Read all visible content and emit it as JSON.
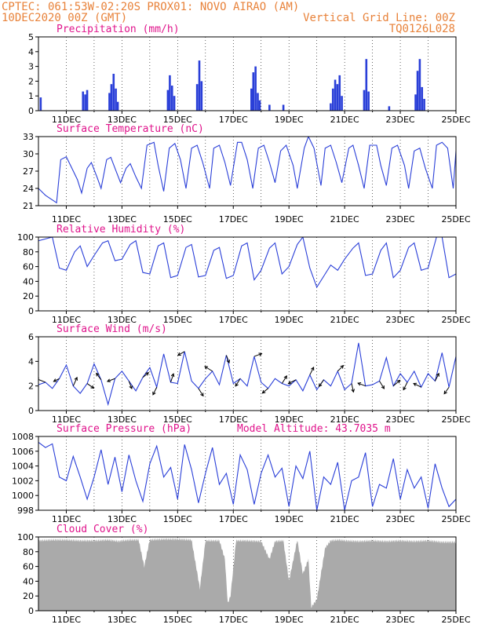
{
  "header": {
    "line1_left": "CPTEC:  061:53W-02:20S   PROX01: NOVO AIRAO (AM)",
    "line2_left": "10DEC2020 00Z (GMT)",
    "line2_right": "Vertical Grid Line: 00Z",
    "line3_right": "TQ0126L028"
  },
  "colors": {
    "header": "#e8823a",
    "title": "#e0148c",
    "series": "#2a3fd8",
    "cloud": "#aaaaaa",
    "arrow": "#000000"
  },
  "chart_data": [
    {
      "id": "precip",
      "type": "bar",
      "title": "Precipitation (mm/h)",
      "x_ticks": [
        "11DEC",
        "13DEC",
        "15DEC",
        "17DEC",
        "19DEC",
        "21DEC",
        "23DEC",
        "25DEC"
      ],
      "x_range_days": [
        10.0,
        25.0
      ],
      "ylim": [
        0,
        5
      ],
      "y_ticks": [
        0,
        1,
        2,
        3,
        4,
        5
      ],
      "bars": [
        {
          "day": 10.08,
          "value": 0.9
        },
        {
          "day": 11.6,
          "value": 1.3
        },
        {
          "day": 11.68,
          "value": 1.1
        },
        {
          "day": 11.75,
          "value": 1.4
        },
        {
          "day": 12.55,
          "value": 1.2
        },
        {
          "day": 12.62,
          "value": 1.8
        },
        {
          "day": 12.7,
          "value": 2.5
        },
        {
          "day": 12.78,
          "value": 1.5
        },
        {
          "day": 12.85,
          "value": 0.6
        },
        {
          "day": 14.65,
          "value": 1.4
        },
        {
          "day": 14.72,
          "value": 2.4
        },
        {
          "day": 14.8,
          "value": 1.7
        },
        {
          "day": 14.88,
          "value": 1.0
        },
        {
          "day": 15.7,
          "value": 1.8
        },
        {
          "day": 15.78,
          "value": 3.4
        },
        {
          "day": 15.86,
          "value": 2.0
        },
        {
          "day": 17.65,
          "value": 1.5
        },
        {
          "day": 17.72,
          "value": 2.6
        },
        {
          "day": 17.8,
          "value": 3.0
        },
        {
          "day": 17.88,
          "value": 1.2
        },
        {
          "day": 17.95,
          "value": 0.7
        },
        {
          "day": 18.3,
          "value": 0.4
        },
        {
          "day": 18.8,
          "value": 0.4
        },
        {
          "day": 20.5,
          "value": 0.5
        },
        {
          "day": 20.58,
          "value": 1.5
        },
        {
          "day": 20.66,
          "value": 2.1
        },
        {
          "day": 20.74,
          "value": 1.8
        },
        {
          "day": 20.82,
          "value": 2.4
        },
        {
          "day": 20.9,
          "value": 1.0
        },
        {
          "day": 21.7,
          "value": 1.4
        },
        {
          "day": 21.78,
          "value": 3.5
        },
        {
          "day": 21.86,
          "value": 1.3
        },
        {
          "day": 22.6,
          "value": 0.3
        },
        {
          "day": 23.55,
          "value": 1.1
        },
        {
          "day": 23.62,
          "value": 2.7
        },
        {
          "day": 23.7,
          "value": 3.5
        },
        {
          "day": 23.78,
          "value": 1.6
        },
        {
          "day": 23.86,
          "value": 0.8
        }
      ]
    },
    {
      "id": "temp",
      "type": "line",
      "title": "Surface Temperature (nC)",
      "x_ticks": [
        "11DEC",
        "13DEC",
        "15DEC",
        "17DEC",
        "19DEC",
        "21DEC",
        "23DEC",
        "25DEC"
      ],
      "x_range_days": [
        10.0,
        25.0
      ],
      "ylim": [
        21,
        33
      ],
      "y_ticks": [
        21,
        24,
        27,
        30,
        33
      ],
      "x": [
        10.0,
        10.25,
        10.5,
        10.65,
        10.8,
        11.0,
        11.2,
        11.4,
        11.55,
        11.75,
        11.9,
        12.1,
        12.25,
        12.45,
        12.6,
        12.75,
        12.95,
        13.15,
        13.3,
        13.5,
        13.7,
        13.9,
        14.15,
        14.3,
        14.5,
        14.7,
        14.9,
        15.1,
        15.3,
        15.5,
        15.7,
        15.9,
        16.15,
        16.3,
        16.5,
        16.7,
        16.9,
        17.15,
        17.3,
        17.5,
        17.7,
        17.9,
        18.1,
        18.3,
        18.5,
        18.7,
        18.9,
        19.15,
        19.3,
        19.55,
        19.7,
        19.9,
        20.15,
        20.3,
        20.5,
        20.7,
        20.9,
        21.15,
        21.3,
        21.5,
        21.7,
        21.9,
        22.15,
        22.3,
        22.5,
        22.7,
        22.9,
        23.15,
        23.3,
        23.5,
        23.7,
        23.9,
        24.15,
        24.3,
        24.5,
        24.7,
        24.9,
        25.0
      ],
      "y": [
        24.0,
        22.8,
        22.0,
        21.5,
        29.0,
        29.5,
        27.5,
        25.5,
        23.2,
        27.5,
        28.5,
        26.0,
        24.0,
        29.0,
        29.4,
        27.5,
        25.0,
        27.5,
        28.3,
        26.0,
        24.0,
        31.5,
        32.0,
        28.0,
        23.5,
        31.0,
        31.8,
        29.0,
        24.0,
        31.0,
        31.5,
        28.5,
        24.0,
        31.0,
        31.5,
        28.5,
        24.5,
        32.0,
        32.0,
        29.0,
        24.0,
        31.0,
        31.5,
        28.5,
        25.0,
        30.5,
        31.5,
        28.0,
        24.0,
        31.0,
        33.0,
        31.0,
        24.5,
        31.0,
        31.5,
        28.5,
        25.0,
        31.0,
        31.5,
        28.0,
        24.0,
        31.5,
        31.5,
        28.0,
        24.5,
        31.0,
        31.5,
        28.0,
        24.0,
        30.5,
        31.0,
        27.5,
        24.0,
        31.5,
        32.0,
        31.0,
        24.0,
        30.5
      ]
    },
    {
      "id": "rh",
      "type": "line",
      "title": "Relative Humidity (%)",
      "x_ticks": [
        "11DEC",
        "13DEC",
        "15DEC",
        "17DEC",
        "19DEC",
        "21DEC",
        "23DEC",
        "25DEC"
      ],
      "x_range_days": [
        10.0,
        25.0
      ],
      "ylim": [
        0,
        100
      ],
      "y_ticks": [
        0,
        20,
        40,
        60,
        80,
        100
      ],
      "x": [
        10.0,
        10.3,
        10.5,
        10.75,
        11.0,
        11.3,
        11.5,
        11.75,
        12.0,
        12.3,
        12.5,
        12.75,
        13.0,
        13.3,
        13.5,
        13.75,
        14.0,
        14.3,
        14.5,
        14.75,
        15.0,
        15.3,
        15.5,
        15.75,
        16.0,
        16.3,
        16.5,
        16.75,
        17.0,
        17.3,
        17.5,
        17.75,
        18.0,
        18.3,
        18.5,
        18.75,
        19.0,
        19.3,
        19.5,
        19.75,
        20.0,
        20.3,
        20.5,
        20.75,
        21.0,
        21.3,
        21.5,
        21.75,
        22.0,
        22.3,
        22.5,
        22.75,
        23.0,
        23.3,
        23.5,
        23.75,
        24.0,
        24.3,
        24.5,
        24.75,
        25.0
      ],
      "y": [
        95,
        98,
        100,
        58,
        55,
        80,
        88,
        60,
        75,
        92,
        95,
        68,
        70,
        90,
        95,
        52,
        50,
        88,
        92,
        45,
        48,
        86,
        90,
        46,
        48,
        82,
        86,
        44,
        48,
        88,
        92,
        42,
        55,
        85,
        92,
        50,
        60,
        90,
        100,
        58,
        32,
        50,
        62,
        55,
        70,
        85,
        92,
        48,
        50,
        82,
        92,
        45,
        55,
        86,
        92,
        55,
        58,
        100,
        100,
        45,
        50
      ]
    },
    {
      "id": "wind",
      "type": "line",
      "title": "Surface Wind (m/s)",
      "x_ticks": [
        "11DEC",
        "13DEC",
        "15DEC",
        "17DEC",
        "19DEC",
        "21DEC",
        "23DEC",
        "25DEC"
      ],
      "x_range_days": [
        10.0,
        25.0
      ],
      "ylim": [
        0,
        6
      ],
      "y_ticks": [
        0,
        2,
        4,
        6
      ],
      "x": [
        10.0,
        10.25,
        10.5,
        10.75,
        11.0,
        11.25,
        11.5,
        11.75,
        12.0,
        12.25,
        12.5,
        12.75,
        13.0,
        13.25,
        13.5,
        13.75,
        14.0,
        14.25,
        14.5,
        14.75,
        15.0,
        15.25,
        15.5,
        15.75,
        16.0,
        16.25,
        16.5,
        16.75,
        17.0,
        17.25,
        17.5,
        17.75,
        18.0,
        18.25,
        18.5,
        18.75,
        19.0,
        19.25,
        19.5,
        19.75,
        20.0,
        20.25,
        20.5,
        20.75,
        21.0,
        21.25,
        21.5,
        21.75,
        22.0,
        22.25,
        22.5,
        22.75,
        23.0,
        23.25,
        23.5,
        23.75,
        24.0,
        24.25,
        24.5,
        24.75,
        25.0
      ],
      "y": [
        2.1,
        2.3,
        1.8,
        2.6,
        3.7,
        2.0,
        1.4,
        2.2,
        3.8,
        2.5,
        0.5,
        2.6,
        3.2,
        2.4,
        1.6,
        2.7,
        3.5,
        1.9,
        4.6,
        2.3,
        2.2,
        4.8,
        2.4,
        1.8,
        2.6,
        3.2,
        2.1,
        4.5,
        2.2,
        2.6,
        2.0,
        4.4,
        2.3,
        1.8,
        2.6,
        2.2,
        2.0,
        2.5,
        1.6,
        2.9,
        1.7,
        2.5,
        2.0,
        3.2,
        1.7,
        2.2,
        5.5,
        2.0,
        2.1,
        2.4,
        4.3,
        2.0,
        3.0,
        2.3,
        3.2,
        1.9,
        3.0,
        2.4,
        4.7,
        1.9,
        4.4
      ],
      "arrows": [
        {
          "day": 10.25,
          "u": -1.0,
          "v": 0.4
        },
        {
          "day": 10.75,
          "u": -0.6,
          "v": -0.3
        },
        {
          "day": 11.25,
          "u": 0.4,
          "v": 0.9
        },
        {
          "day": 11.75,
          "u": 0.7,
          "v": -0.5
        },
        {
          "day": 12.25,
          "u": -0.5,
          "v": 0.7
        },
        {
          "day": 12.75,
          "u": -0.8,
          "v": -0.3
        },
        {
          "day": 13.25,
          "u": 0.3,
          "v": -0.8
        },
        {
          "day": 13.75,
          "u": 0.6,
          "v": 0.5
        },
        {
          "day": 14.25,
          "u": -0.4,
          "v": -0.8
        },
        {
          "day": 14.75,
          "u": 0.3,
          "v": 0.9
        },
        {
          "day": 15.25,
          "u": -0.7,
          "v": -0.4
        },
        {
          "day": 15.75,
          "u": 0.5,
          "v": -0.8
        },
        {
          "day": 16.25,
          "u": -0.8,
          "v": 0.5
        },
        {
          "day": 16.75,
          "u": 0.3,
          "v": -0.8
        },
        {
          "day": 17.25,
          "u": -0.5,
          "v": -0.8
        },
        {
          "day": 17.75,
          "u": 0.8,
          "v": 0.3
        },
        {
          "day": 18.25,
          "u": -0.6,
          "v": -0.5
        },
        {
          "day": 18.75,
          "u": 0.5,
          "v": 0.8
        },
        {
          "day": 19.25,
          "u": -0.8,
          "v": -0.4
        },
        {
          "day": 19.75,
          "u": 0.4,
          "v": 0.8
        },
        {
          "day": 20.25,
          "u": -0.5,
          "v": -0.7
        },
        {
          "day": 20.75,
          "u": 0.6,
          "v": 0.6
        },
        {
          "day": 21.25,
          "u": 0.2,
          "v": -0.9
        },
        {
          "day": 21.75,
          "u": -0.8,
          "v": 0.3
        },
        {
          "day": 22.25,
          "u": 0.5,
          "v": -0.8
        },
        {
          "day": 22.75,
          "u": 0.7,
          "v": 0.6
        },
        {
          "day": 23.25,
          "u": -0.4,
          "v": -0.8
        },
        {
          "day": 23.75,
          "u": -0.8,
          "v": 0.4
        },
        {
          "day": 24.25,
          "u": 0.4,
          "v": 0.8
        },
        {
          "day": 24.75,
          "u": -0.5,
          "v": -0.7
        }
      ]
    },
    {
      "id": "pressure",
      "type": "line",
      "title": "Surface Pressure (hPa)",
      "annotation": "Model Altitude: 43.7035 m",
      "x_ticks": [
        "11DEC",
        "13DEC",
        "15DEC",
        "17DEC",
        "19DEC",
        "21DEC",
        "23DEC",
        "25DEC"
      ],
      "x_range_days": [
        10.0,
        25.0
      ],
      "ylim": [
        998,
        1008
      ],
      "y_ticks": [
        998,
        1000,
        1002,
        1004,
        1006,
        1008
      ],
      "x": [
        10.0,
        10.25,
        10.5,
        10.75,
        11.0,
        11.25,
        11.5,
        11.75,
        12.0,
        12.25,
        12.5,
        12.75,
        13.0,
        13.25,
        13.5,
        13.75,
        14.0,
        14.25,
        14.5,
        14.75,
        15.0,
        15.25,
        15.5,
        15.75,
        16.0,
        16.25,
        16.5,
        16.75,
        17.0,
        17.25,
        17.5,
        17.75,
        18.0,
        18.25,
        18.5,
        18.75,
        19.0,
        19.25,
        19.5,
        19.75,
        20.0,
        20.25,
        20.5,
        20.75,
        21.0,
        21.25,
        21.5,
        21.75,
        22.0,
        22.25,
        22.5,
        22.75,
        23.0,
        23.25,
        23.5,
        23.75,
        24.0,
        24.25,
        24.5,
        24.75,
        25.0
      ],
      "y": [
        1007.2,
        1006.5,
        1007.0,
        1002.5,
        1002.0,
        1005.3,
        1002.5,
        999.5,
        1002.5,
        1006.2,
        1001.5,
        1005.2,
        1000.5,
        1005.5,
        1002.0,
        999.2,
        1004.3,
        1006.7,
        1002.5,
        1003.8,
        999.5,
        1006.9,
        1003.5,
        999.0,
        1003.0,
        1006.5,
        1001.5,
        1003.0,
        998.8,
        1005.5,
        1003.5,
        998.8,
        1003.0,
        1005.5,
        1002.5,
        1003.7,
        998.5,
        1004.0,
        1002.3,
        1006.0,
        998.0,
        1002.5,
        1001.5,
        1004.5,
        998.0,
        1002.0,
        1002.5,
        1005.8,
        998.5,
        1001.5,
        1001.0,
        1005.0,
        999.5,
        1003.5,
        1001.0,
        1002.5,
        998.3,
        1004.3,
        1001.0,
        998.5,
        999.5
      ]
    },
    {
      "id": "cloud",
      "type": "area",
      "title": "Cloud Cover (%)",
      "x_ticks": [
        "11DEC",
        "13DEC",
        "15DEC",
        "17DEC",
        "19DEC",
        "21DEC",
        "23DEC",
        "25DEC"
      ],
      "x_range_days": [
        10.0,
        25.0
      ],
      "ylim": [
        0,
        100
      ],
      "y_ticks": [
        0,
        20,
        40,
        60,
        80,
        100
      ],
      "x": [
        10.0,
        10.5,
        11.0,
        11.5,
        12.0,
        12.5,
        12.9,
        13.0,
        13.3,
        13.6,
        13.8,
        14.0,
        14.5,
        15.0,
        15.5,
        15.8,
        16.0,
        16.5,
        16.7,
        16.8,
        16.9,
        17.1,
        17.5,
        18.0,
        18.3,
        18.5,
        18.8,
        19.0,
        19.3,
        19.5,
        19.7,
        19.8,
        20.0,
        20.3,
        20.5,
        20.8,
        21.0,
        21.5,
        22.0,
        22.5,
        23.0,
        23.5,
        24.0,
        24.5,
        25.0
      ],
      "y": [
        95,
        96,
        96,
        95,
        95,
        96,
        94,
        95,
        96,
        96,
        60,
        96,
        97,
        97,
        96,
        30,
        95,
        95,
        70,
        10,
        20,
        95,
        95,
        94,
        70,
        94,
        95,
        40,
        96,
        50,
        70,
        5,
        15,
        85,
        95,
        96,
        95,
        94,
        95,
        94,
        95,
        94,
        95,
        93,
        93
      ]
    }
  ]
}
